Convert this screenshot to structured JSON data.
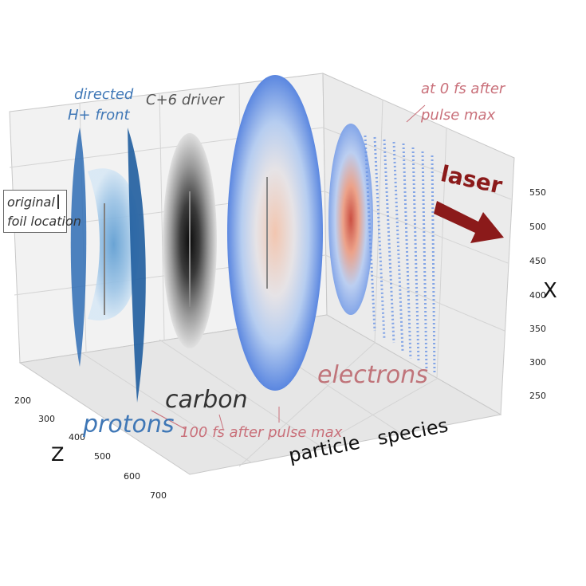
{
  "chart_data": {
    "type": "scatter",
    "projection": "3d",
    "axes": {
      "z": {
        "label": "Z",
        "ticks": [
          "200",
          "300",
          "400",
          "500",
          "600",
          "700"
        ]
      },
      "x": {
        "label": "X",
        "ticks": [
          "250",
          "300",
          "350",
          "400",
          "450",
          "500",
          "550"
        ]
      },
      "species": {
        "label": "particle   species"
      }
    },
    "series": [
      {
        "name": "protons",
        "colormap": "blues"
      },
      {
        "name": "carbon",
        "colormap": "greys"
      },
      {
        "name": "electrons",
        "colormap": "coolwarm"
      },
      {
        "name": "electrons",
        "colormap": "coolwarm"
      }
    ],
    "annotations": {
      "protons": "protons",
      "carbon": "carbon",
      "electrons": "electrons",
      "directed_front_1": "directed",
      "directed_front_2": "H+ front",
      "driver": "C+6 driver",
      "time_late_1": "at 0 fs after",
      "time_late_2": "pulse max",
      "time_early": "100 fs after pulse max",
      "foil_1": "original",
      "foil_2": "foil location",
      "laser": "laser"
    },
    "grid": true
  },
  "colors": {
    "protons": "#2f6db5",
    "electrons_label": "#c0747a",
    "laser_arrow": "#8b1a1a",
    "annotation_red": "#c9707a",
    "annotation_blue": "#3f77b6"
  }
}
